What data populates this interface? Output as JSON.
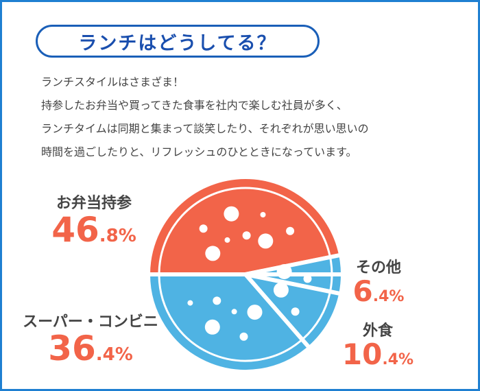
{
  "title": "ランチはどうしてる？",
  "intro": [
    "ランチスタイルはさまざま！",
    "持参したお弁当や買ってきた食事を社内で楽しむ社員が多く、",
    "ランチタイムは同期と集まって談笑したり、それぞれが思い思いの",
    "時間を過ごしたりと、リフレッシュのひとときになっています。"
  ],
  "colors": {
    "frame": "#1f7fd1",
    "title": "#1a4fae",
    "coral": "#f26449",
    "sky": "#4fb3e3",
    "text": "#444444"
  },
  "chart_data": {
    "type": "pie",
    "title": "ランチはどうしてる？",
    "unit": "%",
    "slices": [
      {
        "label": "お弁当持参",
        "value": 46.8,
        "int": "46",
        "dec": ".8",
        "color": "#f26449"
      },
      {
        "label": "その他",
        "value": 6.4,
        "int": "6",
        "dec": ".4",
        "color": "#4fb3e3"
      },
      {
        "label": "外食",
        "value": 10.4,
        "int": "10",
        "dec": ".4",
        "color": "#4fb3e3"
      },
      {
        "label": "スーパー・コンビニ",
        "value": 36.4,
        "int": "36",
        "dec": ".4",
        "color": "#4fb3e3"
      }
    ]
  }
}
